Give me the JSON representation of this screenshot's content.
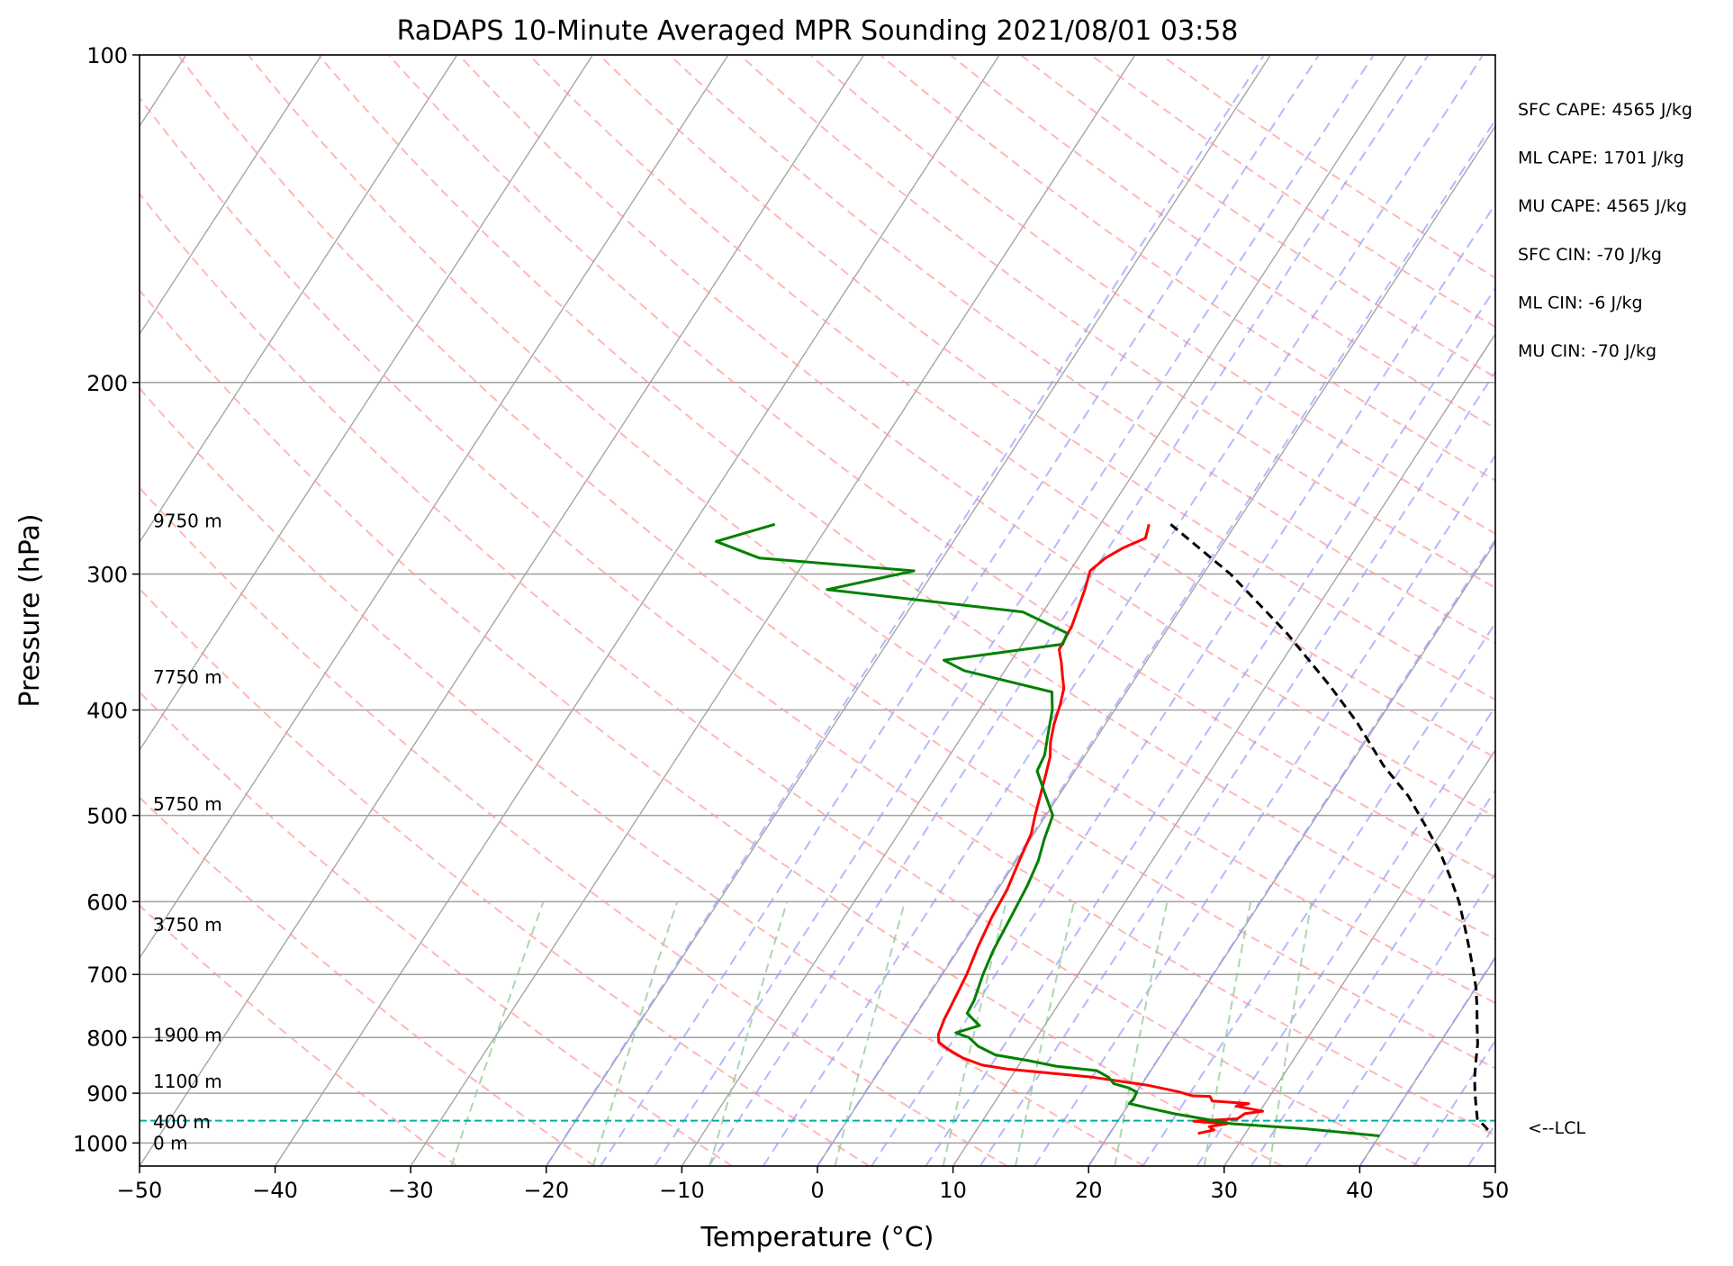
{
  "chart_data": {
    "type": "line",
    "title": "RaDAPS 10-Minute Averaged MPR Sounding 2021/08/01 03:58",
    "xlabel": "Temperature (°C)",
    "ylabel": "Pressure (hPa)",
    "xlim": [
      -50,
      50
    ],
    "ylim": [
      1050,
      100
    ],
    "y_scale": "log",
    "skew_t": true,
    "grid": true,
    "x_ticks": [
      -50,
      -40,
      -30,
      -20,
      -10,
      0,
      10,
      20,
      30,
      40,
      50
    ],
    "x_tick_labels": [
      "−50",
      "−40",
      "−30",
      "−20",
      "−10",
      "0",
      "10",
      "20",
      "30",
      "40",
      "50"
    ],
    "y_ticks": [
      100,
      200,
      300,
      400,
      500,
      600,
      700,
      800,
      900,
      1000
    ],
    "y_tick_labels": [
      "100",
      "200",
      "300",
      "400",
      "500",
      "600",
      "700",
      "800",
      "900",
      "1000"
    ],
    "colors": {
      "temperature": "#ff0000",
      "dewpoint": "#008000",
      "parcel": "#000000",
      "isotherm": "#a0a0a0",
      "isobar": "#a0a0a0",
      "dry_adiabat": "#ff9999",
      "moist_adiabat": "#9999ff",
      "mixing_ratio": "#99cc99",
      "lcl": "#00b0a0"
    },
    "series": [
      {
        "key": "temperature",
        "points": [
          [
            -6.4,
            270
          ],
          [
            -6.0,
            278
          ],
          [
            -7.2,
            284
          ],
          [
            -8.0,
            290
          ],
          [
            -8.5,
            298
          ],
          [
            -8.0,
            310
          ],
          [
            -7.6,
            322
          ],
          [
            -7.2,
            335
          ],
          [
            -7.0,
            352
          ],
          [
            -6.2,
            362
          ],
          [
            -5.5,
            372
          ],
          [
            -4.8,
            382
          ],
          [
            -4.3,
            395
          ],
          [
            -3.8,
            412
          ],
          [
            -3.2,
            428
          ],
          [
            -2.5,
            442
          ],
          [
            -2.0,
            458
          ],
          [
            -1.5,
            475
          ],
          [
            -0.8,
            500
          ],
          [
            -0.2,
            520
          ],
          [
            0.2,
            550
          ],
          [
            0.7,
            585
          ],
          [
            0.9,
            620
          ],
          [
            1.3,
            660
          ],
          [
            1.8,
            700
          ],
          [
            2.1,
            740
          ],
          [
            2.3,
            770
          ],
          [
            2.6,
            795
          ],
          [
            3.0,
            808
          ],
          [
            4.0,
            820
          ],
          [
            5.5,
            835
          ],
          [
            7.3,
            848
          ],
          [
            9.3,
            855
          ],
          [
            16,
            870
          ],
          [
            20.5,
            885
          ],
          [
            23,
            897
          ],
          [
            24.3,
            905
          ],
          [
            25.6,
            906
          ],
          [
            26,
            915
          ],
          [
            28.8,
            920
          ],
          [
            28.0,
            925
          ],
          [
            28.7,
            928
          ],
          [
            30.2,
            935
          ],
          [
            29.0,
            940
          ],
          [
            28.7,
            950
          ],
          [
            25.6,
            955
          ],
          [
            28.2,
            960
          ],
          [
            27.0,
            966
          ],
          [
            27.5,
            973
          ],
          [
            26.5,
            980
          ]
        ]
      },
      {
        "key": "dewpoint",
        "points": [
          [
            -34,
            270
          ],
          [
            -37.5,
            280
          ],
          [
            -33.5,
            290
          ],
          [
            -21.5,
            298
          ],
          [
            -27,
            310
          ],
          [
            -11.5,
            325
          ],
          [
            -7.2,
            340
          ],
          [
            -7.0,
            348
          ],
          [
            -15,
            360
          ],
          [
            -13,
            368
          ],
          [
            -5.5,
            385
          ],
          [
            -4.6,
            400
          ],
          [
            -3.8,
            420
          ],
          [
            -3.0,
            440
          ],
          [
            -2.8,
            455
          ],
          [
            -1.3,
            475
          ],
          [
            0.5,
            500
          ],
          [
            1.0,
            525
          ],
          [
            1.6,
            550
          ],
          [
            2.0,
            580
          ],
          [
            2.3,
            620
          ],
          [
            2.6,
            665
          ],
          [
            3.0,
            700
          ],
          [
            3.6,
            740
          ],
          [
            3.7,
            760
          ],
          [
            5.2,
            780
          ],
          [
            3.8,
            792
          ],
          [
            5.0,
            800
          ],
          [
            6.1,
            815
          ],
          [
            7.8,
            830
          ],
          [
            10.5,
            840
          ],
          [
            12.8,
            850
          ],
          [
            16,
            858
          ],
          [
            17.2,
            870
          ],
          [
            17.9,
            882
          ],
          [
            19.2,
            890
          ],
          [
            20.0,
            898
          ],
          [
            20.1,
            912
          ],
          [
            20.0,
            920
          ],
          [
            21.5,
            928
          ],
          [
            23.8,
            940
          ],
          [
            26.2,
            950
          ],
          [
            28.5,
            960
          ],
          [
            34.0,
            970
          ],
          [
            40.0,
            985
          ]
        ]
      },
      {
        "key": "parcel",
        "points": [
          [
            -4.8,
            270
          ],
          [
            2.0,
            300
          ],
          [
            9.0,
            340
          ],
          [
            14.7,
            380
          ],
          [
            18.4,
            410
          ],
          [
            22.5,
            450
          ],
          [
            25.8,
            480
          ],
          [
            28.4,
            510
          ],
          [
            30.8,
            540
          ],
          [
            32.8,
            570
          ],
          [
            34.6,
            600
          ],
          [
            36.1,
            630
          ],
          [
            37.5,
            660
          ],
          [
            38.8,
            690
          ],
          [
            40.0,
            720
          ],
          [
            41.0,
            750
          ],
          [
            41.9,
            780
          ],
          [
            42.8,
            810
          ],
          [
            43.5,
            840
          ],
          [
            44.2,
            870
          ],
          [
            45.0,
            900
          ],
          [
            45.7,
            925
          ],
          [
            46.4,
            950
          ],
          [
            47.3,
            965
          ],
          [
            48.1,
            980
          ]
        ]
      }
    ],
    "height_labels": [
      {
        "text": "9750 m",
        "p": 268
      },
      {
        "text": "7750 m",
        "p": 373
      },
      {
        "text": "5750 m",
        "p": 488
      },
      {
        "text": "3750 m",
        "p": 630
      },
      {
        "text": "1900 m",
        "p": 796
      },
      {
        "text": "1100 m",
        "p": 878
      },
      {
        "text": "400 m",
        "p": 956
      },
      {
        "text": "0 m",
        "p": 1000
      }
    ],
    "lcl_pressure": 954,
    "lcl_label": "<--LCL",
    "stats": [
      "SFC CAPE: 4565 J/kg",
      "ML CAPE: 1701 J/kg",
      "MU CAPE: 4565 J/kg",
      "SFC CIN: -70 J/kg",
      "ML CIN: -6 J/kg",
      "MU CIN: -70 J/kg"
    ]
  }
}
